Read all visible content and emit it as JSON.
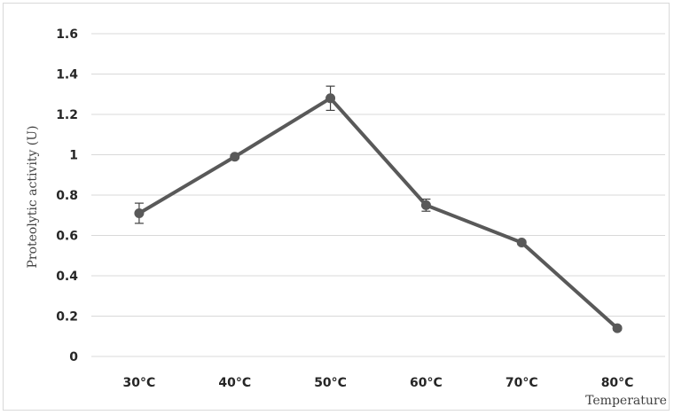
{
  "chart_data": {
    "type": "line",
    "title": "",
    "xlabel": "Temperature",
    "ylabel": "Proteolytic activity  (U)",
    "categories": [
      "30°C",
      "40°C",
      "50°C",
      "60°C",
      "70°C",
      "80°C"
    ],
    "series": [
      {
        "values": [
          0.71,
          0.99,
          1.28,
          0.75,
          0.565,
          0.14
        ],
        "error": [
          0.05,
          0.01,
          0.06,
          0.03,
          0.01,
          0.01
        ],
        "color": "#595959"
      }
    ],
    "ylim": [
      0,
      1.6
    ],
    "yticks": [
      "0",
      "0.2",
      "0.4",
      "0.6",
      "0.8",
      "1",
      "1.2",
      "1.4",
      "1.6"
    ],
    "grid": true,
    "legend": "none"
  }
}
